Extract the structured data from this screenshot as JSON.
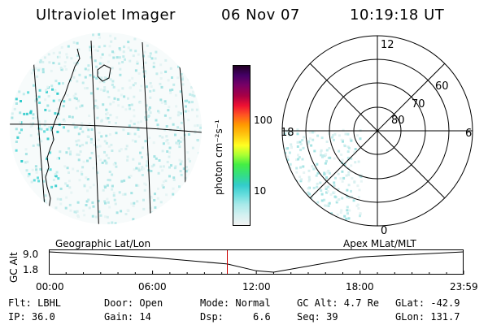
{
  "header": {
    "instrument": "Ultraviolet Imager",
    "date": "06 Nov 07",
    "time": "10:19:18 UT"
  },
  "colorbar": {
    "unit_label": "photon cm⁻²s⁻¹",
    "ticks": [
      "100",
      "10"
    ],
    "colors": [
      "#f2f2f2",
      "#d5f1f1",
      "#a8e9e9",
      "#66dddd",
      "#33cccc",
      "#33dd88",
      "#44ee44",
      "#aaff33",
      "#ffff22",
      "#ffcc11",
      "#ff9900",
      "#ff5522",
      "#ee1133",
      "#aa0044",
      "#770066",
      "#440066",
      "#220022"
    ]
  },
  "left_map": {
    "label": "Geographic Lat/Lon"
  },
  "right_map": {
    "label": "Apex MLat/MLT",
    "lat_labels": [
      "80",
      "70",
      "60"
    ],
    "mlt_labels": {
      "top": "12",
      "right": "6",
      "bottom": "0",
      "left": "18"
    }
  },
  "timeline": {
    "ylabel": "GC Alt",
    "y_ticks": [
      "9.0",
      "1.8"
    ],
    "x_ticks": [
      "00:00",
      "06:00",
      "12:00",
      "18:00",
      "23:59"
    ]
  },
  "status": {
    "row1": {
      "flt": "Flt: LBHL",
      "door": "Door: Open",
      "mode": "Mode: Normal",
      "gcalt": "GC Alt: 4.7 Re",
      "glat": "GLat: -42.9"
    },
    "row2": {
      "ip": "IP: 36.0",
      "gain": "Gain: 14",
      "dsp": "Dsp:     6.6",
      "seq": "Seq: 39",
      "glon": "GLon: 131.7"
    }
  },
  "chart_data": {
    "type": "line",
    "title": "",
    "xlabel": "",
    "ylabel": "GC Alt",
    "x": [
      "00:00",
      "06:00",
      "10:19",
      "12:00",
      "13:00",
      "18:00",
      "23:59"
    ],
    "series": [
      {
        "values": [
          9.0,
          7.0,
          4.7,
          2.3,
          1.8,
          7.2,
          9.0
        ]
      }
    ],
    "current_time": "10:19:18",
    "colors": {
      "line": "#000000",
      "current_marker": "#cc0000"
    }
  }
}
